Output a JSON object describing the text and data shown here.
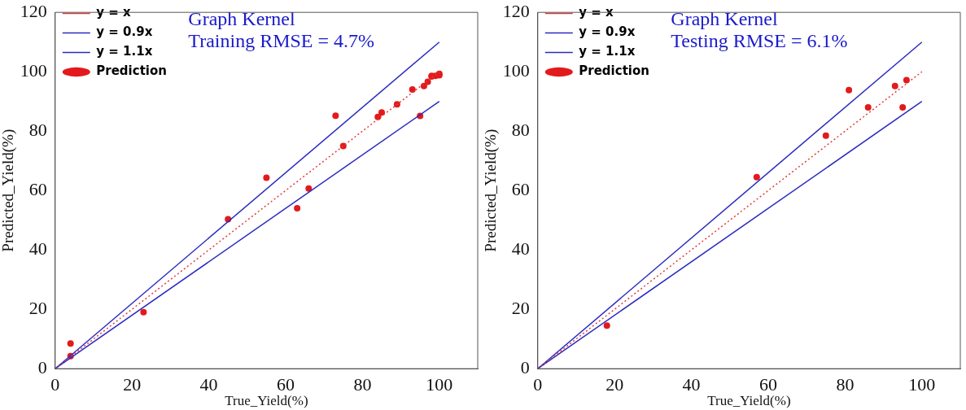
{
  "chart_data": [
    {
      "type": "scatter",
      "xlabel": "True_Yield(%)",
      "ylabel": "Predicted_Yield(%)",
      "annotations": [
        "Graph Kernel",
        "Training RMSE = 4.7%"
      ],
      "xlim": [
        0,
        110
      ],
      "xticks": [
        0,
        20,
        40,
        60,
        80,
        100
      ],
      "ylim": [
        0,
        120
      ],
      "yticks": [
        0,
        20,
        40,
        60,
        80,
        100,
        120
      ],
      "grid": false,
      "legend": "top left",
      "series": [
        {
          "name": "y = x",
          "type": "line",
          "line_style": "dotted",
          "marker": "none",
          "color": "#e03c3c",
          "x": [
            0,
            100
          ],
          "values": [
            0,
            100
          ]
        },
        {
          "name": "y = 0.9x",
          "type": "line",
          "line_style": "solid",
          "marker": "none",
          "color": "#2b2bbf",
          "x": [
            0,
            100
          ],
          "values": [
            0,
            90
          ]
        },
        {
          "name": "y = 1.1x",
          "type": "line",
          "line_style": "solid",
          "marker": "none",
          "color": "#2b2bbf",
          "x": [
            0,
            100
          ],
          "values": [
            0,
            110
          ]
        },
        {
          "name": "Prediction",
          "marker": "circle",
          "color": "#e31a1c",
          "x": [
            4,
            4,
            23,
            45,
            55,
            63,
            66,
            73,
            75,
            84,
            85,
            89,
            93,
            95,
            96,
            97,
            98,
            98,
            99,
            100,
            100
          ],
          "values": [
            8.5,
            4.2,
            19,
            50.3,
            64.3,
            54,
            60.7,
            85.2,
            75,
            84.8,
            86.3,
            89,
            94,
            85.1,
            95.2,
            96.6,
            98.4,
            98.6,
            98.6,
            99.3,
            98.8
          ]
        }
      ]
    },
    {
      "type": "scatter",
      "xlabel": "True_Yield(%)",
      "ylabel": "Predicted_Yield(%)",
      "annotations": [
        "Graph Kernel",
        "Testing RMSE = 6.1%"
      ],
      "xlim": [
        0,
        110
      ],
      "xticks": [
        0,
        20,
        40,
        60,
        80,
        100
      ],
      "ylim": [
        0,
        120
      ],
      "yticks": [
        0,
        20,
        40,
        60,
        80,
        100,
        120
      ],
      "grid": false,
      "legend": "top left",
      "series": [
        {
          "name": "y = x",
          "type": "line",
          "line_style": "dotted",
          "marker": "none",
          "color": "#e03c3c",
          "x": [
            0,
            100
          ],
          "values": [
            0,
            100
          ]
        },
        {
          "name": "y = 0.9x",
          "type": "line",
          "line_style": "solid",
          "marker": "none",
          "color": "#2b2bbf",
          "x": [
            0,
            100
          ],
          "values": [
            0,
            90
          ]
        },
        {
          "name": "y = 1.1x",
          "type": "line",
          "line_style": "solid",
          "marker": "none",
          "color": "#2b2bbf",
          "x": [
            0,
            100
          ],
          "values": [
            0,
            110
          ]
        },
        {
          "name": "Prediction",
          "marker": "circle",
          "color": "#e31a1c",
          "x": [
            18,
            57,
            75,
            81,
            86,
            93,
            95,
            96
          ],
          "values": [
            14.5,
            64.5,
            78.5,
            93.8,
            88,
            95.2,
            88,
            97.2
          ]
        }
      ]
    }
  ]
}
